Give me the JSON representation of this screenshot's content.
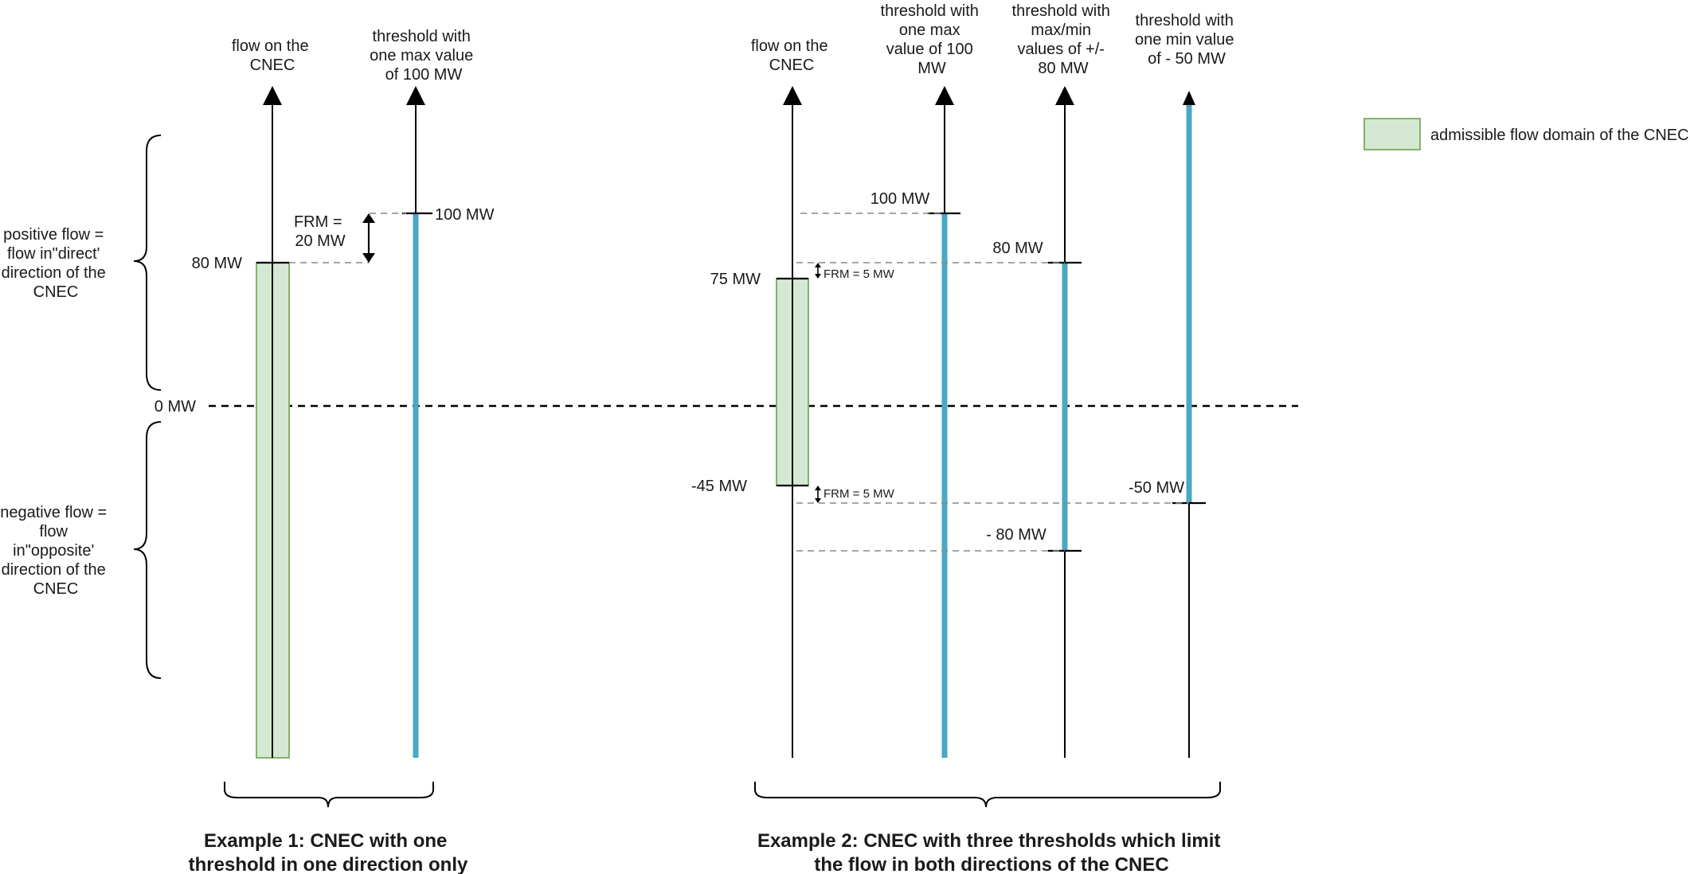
{
  "zero_label": "0 MW",
  "left_braces": {
    "positive": [
      "positive flow =",
      "flow in\"direct'",
      "direction of the",
      "CNEC"
    ],
    "negative": [
      "negative flow =",
      "flow",
      "in\"opposite'",
      "direction of the",
      "CNEC"
    ]
  },
  "example1": {
    "flow_header": [
      "flow on the",
      "CNEC"
    ],
    "threshold_header": [
      "threshold with",
      "one max value",
      "of 100 MW"
    ],
    "flow_max_label": "80 MW",
    "threshold_label": "100 MW",
    "frm_label": [
      "FRM =",
      "20 MW"
    ],
    "caption": [
      "Example 1: CNEC with one",
      "threshold in one direction only"
    ]
  },
  "example2": {
    "flow_header": [
      "flow on the",
      "CNEC"
    ],
    "threshold1_header": [
      "threshold with",
      "one max",
      "value of 100",
      "MW"
    ],
    "threshold2_header": [
      "threshold with",
      "max/min",
      "values of +/-",
      "80 MW"
    ],
    "threshold3_header": [
      "threshold with",
      "one min value",
      "of - 50 MW"
    ],
    "flow_max_label": "75 MW",
    "flow_min_label": "-45 MW",
    "t1_label": "100 MW",
    "t2_max_label": "80 MW",
    "t2_min_label": "- 80 MW",
    "t3_label": "-50 MW",
    "frm_top_label": "FRM = 5 MW",
    "frm_bottom_label": "FRM = 5 MW",
    "caption": [
      "Example 2: CNEC with three thresholds which limit",
      "the flow in both directions of the CNEC"
    ]
  },
  "legend": {
    "label": "admissible flow domain of the CNEC",
    "fill": "#d5e8d4",
    "stroke": "#82b366"
  },
  "colors": {
    "threshold": "#4aa8c2"
  }
}
